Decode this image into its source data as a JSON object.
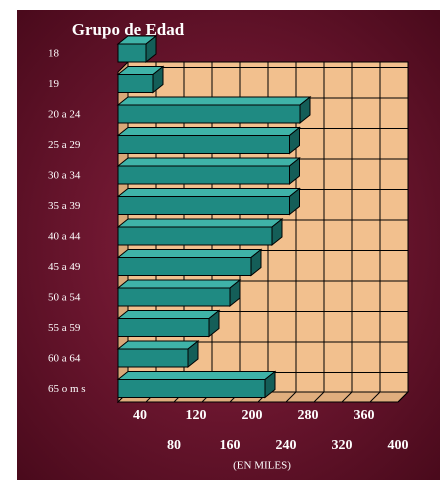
{
  "chart_data": {
    "type": "bar",
    "orientation": "horizontal",
    "title": "Grupo de Edad",
    "x_label": "(EN MILES)",
    "categories": [
      "18",
      "19",
      "20 a 24",
      "25 a 29",
      "30 a 34",
      "35 a 39",
      "40 a 44",
      "45 a 49",
      "50 a 54",
      "55 a 59",
      "60 a 64",
      "65 o m s"
    ],
    "values": [
      40,
      50,
      260,
      245,
      245,
      245,
      220,
      190,
      160,
      130,
      100,
      210
    ],
    "color": "#1f8a82",
    "xlim": [
      0,
      400
    ],
    "xticks": [
      40,
      80,
      120,
      160,
      200,
      240,
      280,
      320,
      360,
      400
    ],
    "grid": true
  }
}
